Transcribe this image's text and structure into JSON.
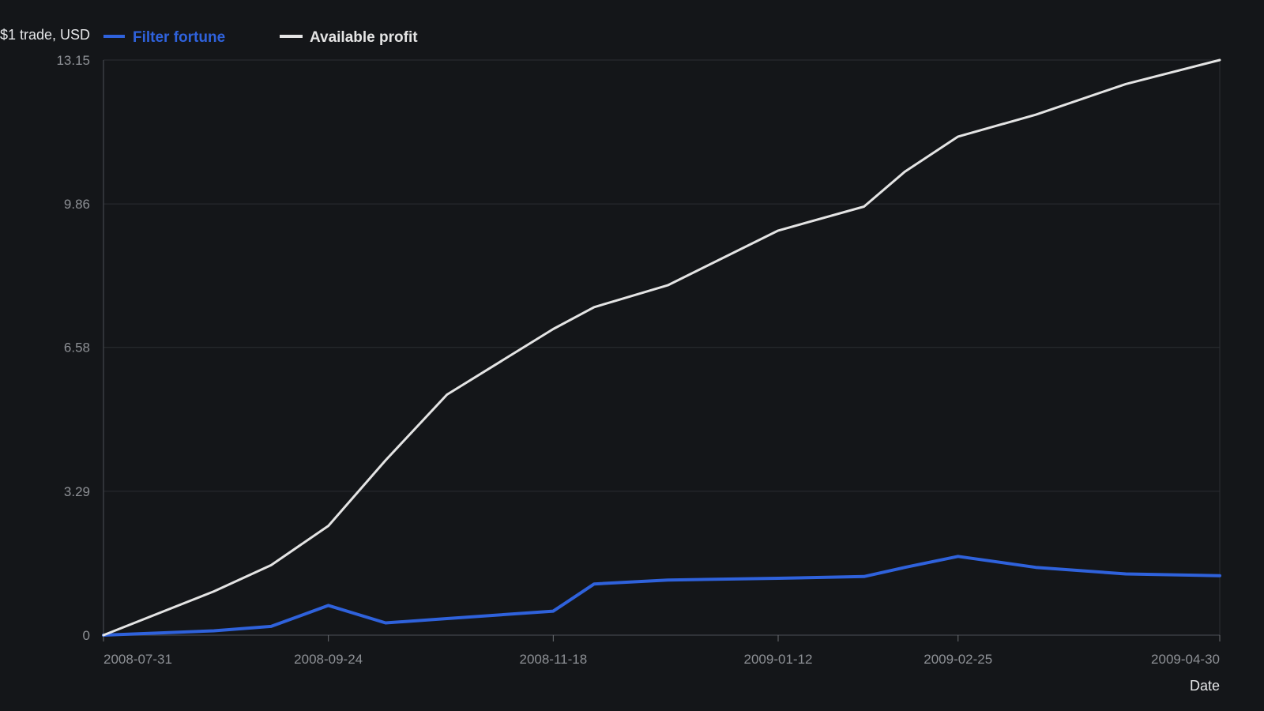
{
  "chart_data": {
    "type": "line",
    "ylabel": "$1 trade, USD",
    "xlabel": "Date",
    "ylim": [
      0,
      13.15
    ],
    "y_ticks": [
      "0",
      "3.29",
      "6.58",
      "9.86",
      "13.15"
    ],
    "x_ticks": [
      "2008-07-31",
      "2008-09-24",
      "2008-11-18",
      "2009-01-12",
      "2009-02-25",
      "2009-04-30"
    ],
    "grid": "horizontal",
    "legend_placement": "top-left",
    "series": [
      {
        "name": "Filter fortune",
        "color": "#2f62dc",
        "points": [
          {
            "x": "2008-07-31",
            "y": 0.0
          },
          {
            "x": "2008-08-27",
            "y": 0.1
          },
          {
            "x": "2008-09-10",
            "y": 0.2
          },
          {
            "x": "2008-09-24",
            "y": 0.68
          },
          {
            "x": "2008-10-08",
            "y": 0.28
          },
          {
            "x": "2008-10-23",
            "y": 0.38
          },
          {
            "x": "2008-11-18",
            "y": 0.55
          },
          {
            "x": "2008-11-28",
            "y": 1.17
          },
          {
            "x": "2008-12-16",
            "y": 1.26
          },
          {
            "x": "2009-01-12",
            "y": 1.3
          },
          {
            "x": "2009-02-02",
            "y": 1.34
          },
          {
            "x": "2009-02-12",
            "y": 1.55
          },
          {
            "x": "2009-02-25",
            "y": 1.8
          },
          {
            "x": "2009-03-16",
            "y": 1.55
          },
          {
            "x": "2009-04-07",
            "y": 1.4
          },
          {
            "x": "2009-04-30",
            "y": 1.36
          }
        ]
      },
      {
        "name": "Available profit",
        "color": "#e4e4e4",
        "points": [
          {
            "x": "2008-07-31",
            "y": 0.0
          },
          {
            "x": "2008-08-27",
            "y": 1.0
          },
          {
            "x": "2008-09-10",
            "y": 1.6
          },
          {
            "x": "2008-09-24",
            "y": 2.5
          },
          {
            "x": "2008-10-08",
            "y": 4.0
          },
          {
            "x": "2008-10-23",
            "y": 5.5
          },
          {
            "x": "2008-11-18",
            "y": 7.0
          },
          {
            "x": "2008-11-28",
            "y": 7.5
          },
          {
            "x": "2008-12-16",
            "y": 8.0
          },
          {
            "x": "2009-01-12",
            "y": 9.25
          },
          {
            "x": "2009-02-02",
            "y": 9.8
          },
          {
            "x": "2009-02-12",
            "y": 10.6
          },
          {
            "x": "2009-02-25",
            "y": 11.4
          },
          {
            "x": "2009-03-16",
            "y": 11.9
          },
          {
            "x": "2009-04-07",
            "y": 12.6
          },
          {
            "x": "2009-04-30",
            "y": 13.15
          }
        ]
      }
    ]
  }
}
